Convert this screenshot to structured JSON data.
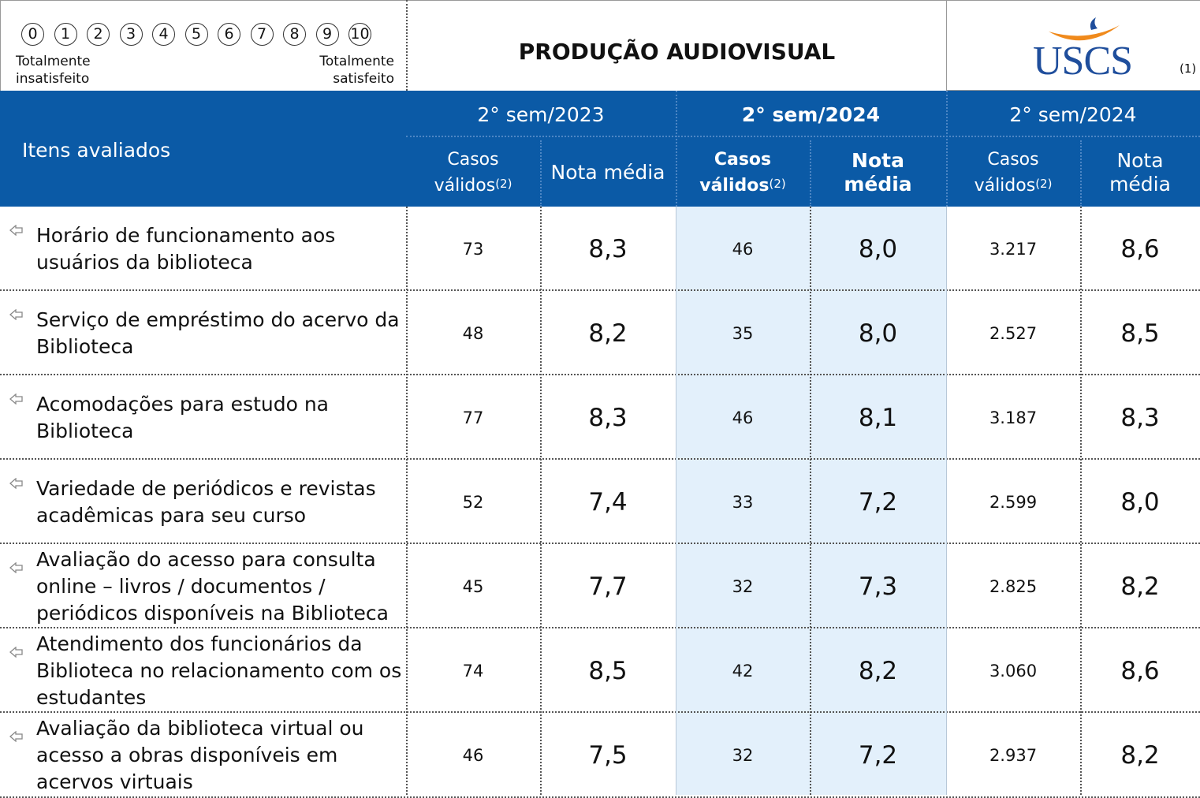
{
  "scale": {
    "points": [
      0,
      1,
      2,
      3,
      4,
      5,
      6,
      7,
      8,
      9,
      10
    ],
    "left_label": "Totalmente insatisfeito",
    "right_label": "Totalmente satisfeito"
  },
  "header": {
    "title": "PRODUÇÃO AUDIOVISUAL",
    "logo": "USCS",
    "note": "(1)"
  },
  "table": {
    "items_label": "Itens avaliados",
    "groups": [
      "2° sem/2023",
      "2° sem/2024",
      "2° sem/2024"
    ],
    "subheaders": [
      {
        "label": "Casos válidos",
        "note": "(2)"
      },
      {
        "label": "Nota média"
      },
      {
        "label": "Casos válidos",
        "note": "(2)"
      },
      {
        "label": "Nota média"
      },
      {
        "label": "Casos válidos",
        "note": "(2)"
      },
      {
        "label": "Nota média"
      }
    ],
    "rows": [
      [
        "Horário de funcionamento aos usuários da biblioteca",
        "73",
        "8,3",
        "46",
        "8,0",
        "3.217",
        "8,6"
      ],
      [
        "Serviço de empréstimo do acervo da Biblioteca",
        "48",
        "8,2",
        "35",
        "8,0",
        "2.527",
        "8,5"
      ],
      [
        "Acomodações para estudo na Biblioteca",
        "77",
        "8,3",
        "46",
        "8,1",
        "3.187",
        "8,3"
      ],
      [
        "Variedade de periódicos e revistas acadêmicas para seu curso",
        "52",
        "7,4",
        "33",
        "7,2",
        "2.599",
        "8,0"
      ],
      [
        "Avaliação do acesso para consulta online – livros / documentos / periódicos disponíveis na Biblioteca",
        "45",
        "7,7",
        "32",
        "7,3",
        "2.825",
        "8,2"
      ],
      [
        "Atendimento dos funcionários da Biblioteca no relacionamento com os estudantes",
        "74",
        "8,5",
        "42",
        "8,2",
        "3.060",
        "8,6"
      ],
      [
        "Avaliação da biblioteca virtual ou acesso a obras disponíveis em acervos virtuais",
        "46",
        "7,5",
        "32",
        "7,2",
        "2.937",
        "8,2"
      ]
    ]
  }
}
